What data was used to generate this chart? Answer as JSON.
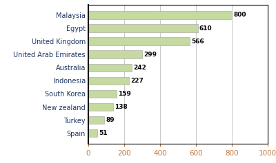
{
  "categories": [
    "Malaysia",
    "Egypt",
    "United Kingdom",
    "United Arab Emirates",
    "Australia",
    "Indonesia",
    "South Korea",
    "New zealand",
    "Turkey",
    "Spain"
  ],
  "values": [
    800,
    610,
    566,
    299,
    242,
    227,
    159,
    138,
    89,
    51
  ],
  "bar_color": "#c5d9a0",
  "bar_edgecolor": "#a0a0a0",
  "label_color": "#1f3864",
  "value_color": "#000000",
  "xtick_color": "#c0783c",
  "xlim": [
    0,
    1000
  ],
  "xticks": [
    0,
    200,
    400,
    600,
    800,
    1000
  ],
  "background_color": "#ffffff",
  "spine_color": "#000000",
  "grid_color": "#c0c0c0"
}
